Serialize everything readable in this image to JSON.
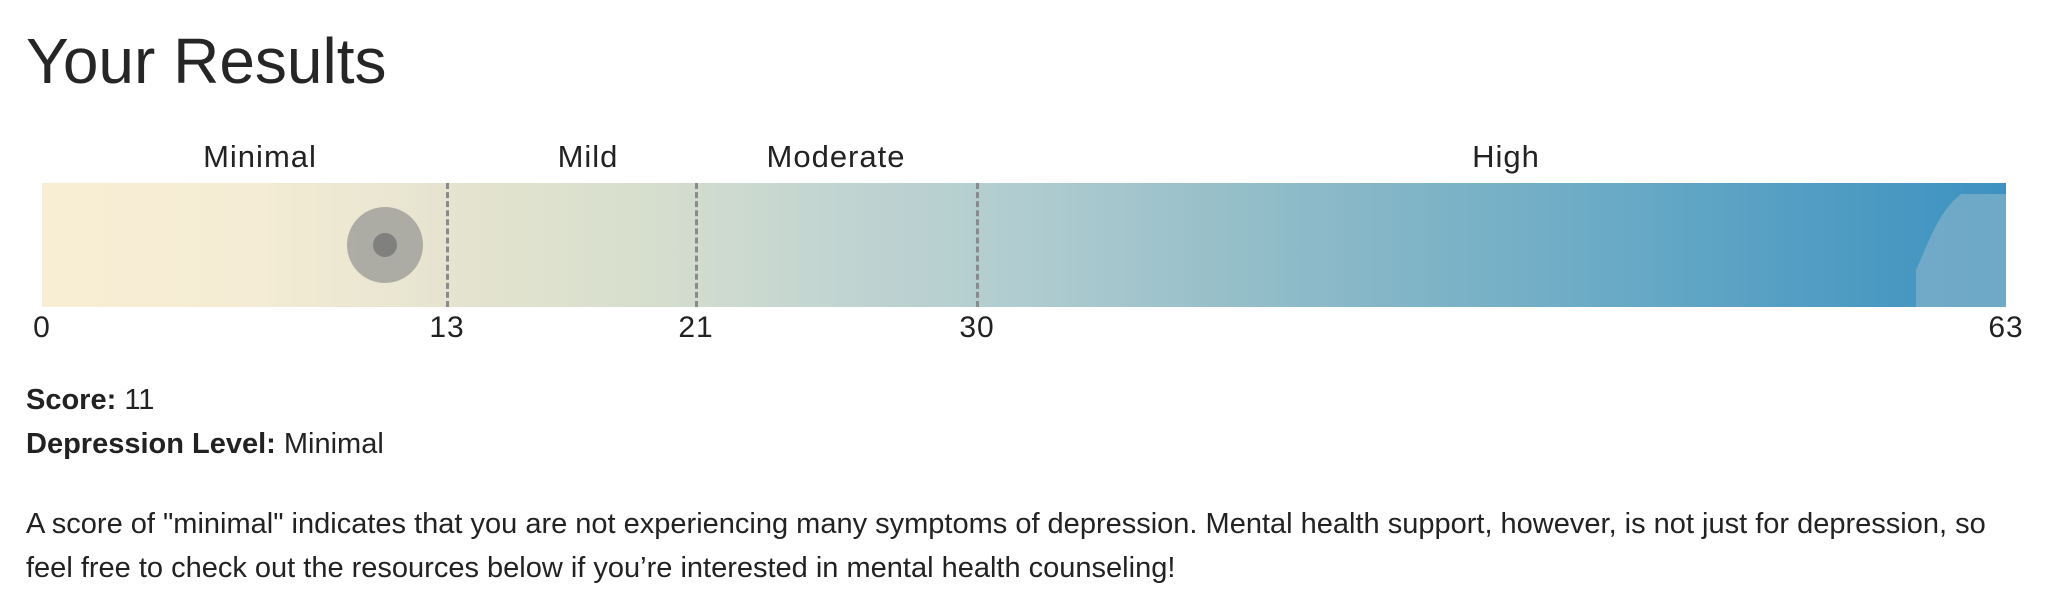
{
  "header": {
    "title": "Your Results"
  },
  "gauge": {
    "scale_min": 0,
    "scale_max": 63,
    "score_marker_value": 11,
    "bands": [
      {
        "label": "Minimal",
        "from": 0,
        "to": 13
      },
      {
        "label": "Mild",
        "from": 13,
        "to": 21
      },
      {
        "label": "Moderate",
        "from": 21,
        "to": 30
      },
      {
        "label": "High",
        "from": 30,
        "to": 63
      }
    ],
    "ticks": [
      "0",
      "13",
      "21",
      "30",
      "63"
    ],
    "colors": {
      "low_end": "#f8eed4",
      "high_end": "#3d92c1",
      "divider": "#8a8a8a",
      "marker": "#8c8c8c"
    }
  },
  "result": {
    "score_label": "Score:",
    "score_value": "11",
    "level_label": "Depression Level:",
    "level_value": "Minimal"
  },
  "description": "A score of \"minimal\" indicates that you are not experiencing many symptoms of depression. Mental health support, however, is not just for depression, so feel free to check out the resources below if you’re interested in mental health counseling!"
}
